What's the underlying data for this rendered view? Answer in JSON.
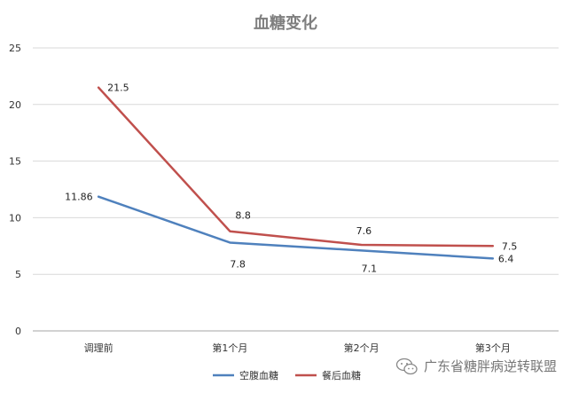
{
  "chart_data": {
    "type": "line",
    "title": "血糖变化",
    "categories": [
      "调理前",
      "第1个月",
      "第2个月",
      "第3个月"
    ],
    "ylim": [
      0,
      25
    ],
    "yticks": [
      0,
      5,
      10,
      15,
      20,
      25
    ],
    "grid": true,
    "legend_position": "bottom",
    "series": [
      {
        "name": "空腹血糖",
        "color": "#4f81bd",
        "values": [
          11.86,
          7.8,
          7.1,
          6.4
        ],
        "labels": [
          "11.86",
          "7.8",
          "7.1",
          "6.4"
        ]
      },
      {
        "name": "餐后血糖",
        "color": "#c0504d",
        "values": [
          21.5,
          8.8,
          7.6,
          7.5
        ],
        "labels": [
          "21.5",
          "8.8",
          "7.6",
          "7.5"
        ]
      }
    ]
  },
  "watermark": {
    "text": "广东省糖胖病逆转联盟",
    "icon": "wechat-icon"
  }
}
